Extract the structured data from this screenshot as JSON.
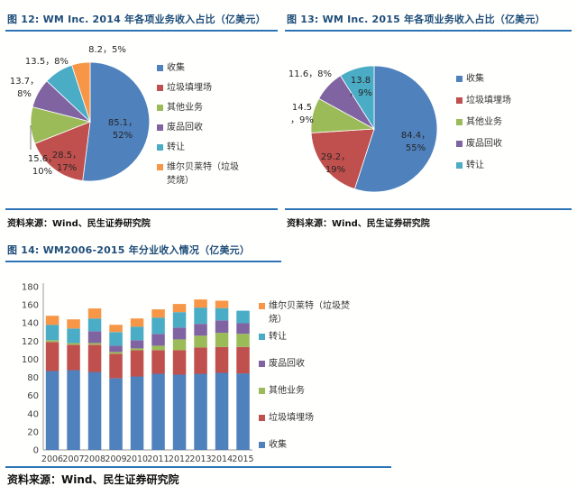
{
  "colors": {
    "collection": "#4F81BD",
    "landfill": "#C0504D",
    "other": "#9BBB59",
    "recycling": "#8064A2",
    "transfer": "#4BACC6",
    "wheelabrator": "#F79646",
    "title_blue": "#1F4E79",
    "rule_blue": "#2E74B5"
  },
  "figures": {
    "fig12": {
      "title": "图 12: WM Inc. 2014 年各项业务收入占比（亿美元）",
      "source": "资料来源：Wind、民生证券研究院"
    },
    "fig13": {
      "title": "图 13: WM Inc. 2015 年各项业务收入占比（亿美元）",
      "source": "资料来源：Wind、民生证券研究院"
    },
    "fig14": {
      "title": "图 14: WM2006-2015 年分业收入情况（亿美元）",
      "source": "资料来源：Wind、民生证券研究院"
    }
  },
  "chart_data": [
    {
      "id": "pie2014",
      "type": "pie",
      "title": "WM Inc. 2014 年各项业务收入占比（亿美元）",
      "unit": "亿美元",
      "slices": [
        {
          "label": "收集",
          "value": 85.1,
          "pct": 52,
          "color_key": "collection"
        },
        {
          "label": "垃圾填埋场",
          "value": 28.5,
          "pct": 17,
          "color_key": "landfill"
        },
        {
          "label": "其他业务",
          "value": 15.6,
          "pct": 10,
          "color_key": "other"
        },
        {
          "label": "废品回收",
          "value": 13.7,
          "pct": 8,
          "color_key": "recycling"
        },
        {
          "label": "转让",
          "value": 13.5,
          "pct": 8,
          "color_key": "transfer"
        },
        {
          "label": "维尔贝莱特（垃圾焚烧）",
          "value": 8.2,
          "pct": 5,
          "color_key": "wheelabrator"
        }
      ],
      "legend": [
        "收集",
        "垃圾填埋场",
        "其他业务",
        "废品回收",
        "转让",
        "维尔贝莱特（垃圾焚烧）"
      ],
      "legend_position": "right"
    },
    {
      "id": "pie2015",
      "type": "pie",
      "title": "WM Inc. 2015 年各项业务收入占比（亿美元）",
      "unit": "亿美元",
      "slices": [
        {
          "label": "收集",
          "value": 84.4,
          "pct": 55,
          "color_key": "collection"
        },
        {
          "label": "垃圾填埋场",
          "value": 29.2,
          "pct": 19,
          "color_key": "landfill"
        },
        {
          "label": "其他业务",
          "value": 14.5,
          "pct": 9,
          "color_key": "other"
        },
        {
          "label": "废品回收",
          "value": 11.6,
          "pct": 8,
          "color_key": "recycling"
        },
        {
          "label": "转让",
          "value": 13.8,
          "pct": 9,
          "color_key": "transfer"
        }
      ],
      "legend": [
        "收集",
        "垃圾填埋场",
        "其他业务",
        "废品回收",
        "转让"
      ],
      "legend_position": "right"
    },
    {
      "id": "bars",
      "type": "bar",
      "stacked": true,
      "title": "WM2006-2015 年分业收入情况（亿美元）",
      "unit": "亿美元",
      "categories": [
        "2006",
        "2007",
        "2008",
        "2009",
        "2010",
        "2011",
        "2012",
        "2013",
        "2014",
        "2015"
      ],
      "series": [
        {
          "name": "收集",
          "color_key": "collection",
          "values": [
            87,
            88,
            86,
            79,
            81,
            84,
            83,
            84,
            85.1,
            84.4
          ]
        },
        {
          "name": "垃圾填埋场",
          "color_key": "landfill",
          "values": [
            32,
            28,
            30,
            27,
            29,
            26,
            27,
            29,
            28.5,
            29.2
          ]
        },
        {
          "name": "其他业务",
          "color_key": "other",
          "values": [
            2,
            2,
            2,
            2,
            2,
            5,
            12,
            13,
            15.6,
            14.5
          ]
        },
        {
          "name": "废品回收",
          "color_key": "recycling",
          "values": [
            0,
            0,
            13,
            7,
            9,
            13,
            13,
            13,
            13.7,
            11.6
          ]
        },
        {
          "name": "转让",
          "color_key": "transfer",
          "values": [
            17,
            16,
            14,
            15,
            15,
            18,
            17,
            18,
            13.5,
            13.8
          ]
        },
        {
          "name": "维尔贝莱特（垃圾焚烧）",
          "color_key": "wheelabrator",
          "values": [
            10,
            10,
            11,
            8,
            9,
            9,
            9,
            9,
            8.2,
            0
          ]
        }
      ],
      "ylim": [
        0,
        180
      ],
      "ytick_step": 20,
      "grid": false,
      "legend_position": "right",
      "legend_order": [
        "维尔贝莱特（垃圾焚烧）",
        "转让",
        "废品回收",
        "其他业务",
        "垃圾填埋场",
        "收集"
      ]
    }
  ]
}
